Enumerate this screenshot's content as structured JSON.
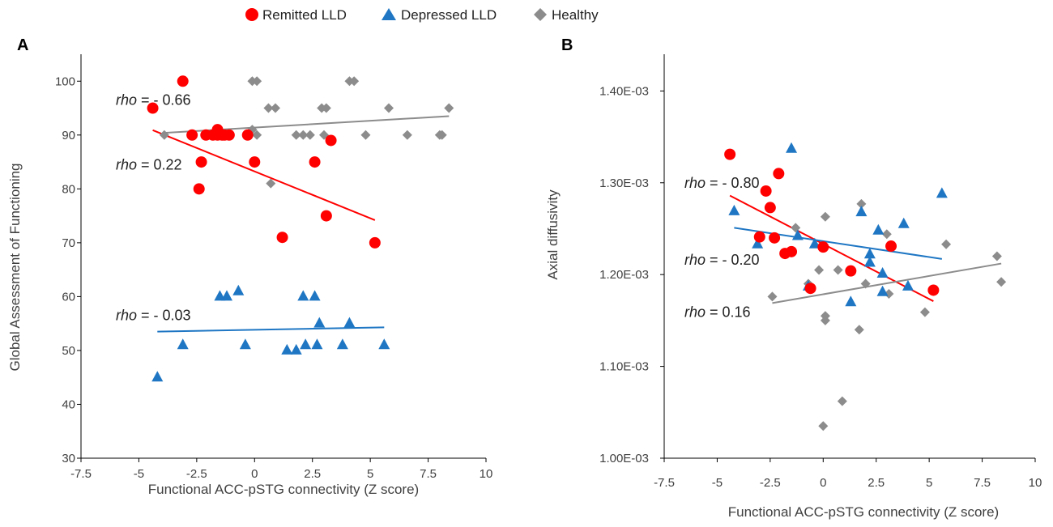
{
  "legend": [
    {
      "label": "Remitted LLD",
      "shape": "circle",
      "color": "#ff0000"
    },
    {
      "label": "Depressed LLD",
      "shape": "triangle",
      "color": "#1f77c4"
    },
    {
      "label": "Healthy",
      "shape": "diamond",
      "color": "#8c8c8c"
    }
  ],
  "colors": {
    "remitted": "#ff0000",
    "depressed": "#1f77c4",
    "healthy": "#8c8c8c",
    "axis": "#000000"
  },
  "chart_data": [
    {
      "type": "scatter",
      "panel": "A",
      "xlabel": "Functional ACC-pSTG connectivity (Z score)",
      "ylabel": "Global Assessment of Functioning",
      "xlim": [
        -7.5,
        10
      ],
      "ylim": [
        30,
        105
      ],
      "xticks": [
        -7.5,
        -5,
        -2.5,
        0,
        2.5,
        5,
        7.5,
        10
      ],
      "yticks": [
        30,
        40,
        50,
        60,
        70,
        80,
        90,
        100
      ],
      "xtick_labels": [
        "-7.5",
        "-5",
        "-2.5",
        "0",
        "2.5",
        "5",
        "7.5",
        "10"
      ],
      "ytick_labels": [
        "30",
        "40",
        "50",
        "60",
        "70",
        "80",
        "90",
        "100"
      ],
      "series": [
        {
          "name": "Remitted LLD",
          "shape": "circle",
          "color": "#ff0000",
          "x": [
            -4.4,
            -3.1,
            -2.7,
            -2.4,
            -2.3,
            -2.1,
            -1.8,
            -1.6,
            -1.6,
            -1.4,
            -1.3,
            -1.1,
            -0.3,
            0.0,
            2.6,
            3.1,
            3.3,
            1.2,
            5.2
          ],
          "y": [
            95,
            100,
            90,
            80,
            85,
            90,
            90,
            90,
            91,
            90,
            90,
            90,
            90,
            85,
            85,
            75,
            89,
            71,
            70
          ]
        },
        {
          "name": "Depressed LLD",
          "shape": "triangle",
          "color": "#1f77c4",
          "x": [
            -4.2,
            -3.1,
            -1.5,
            -1.2,
            -0.7,
            -0.4,
            1.4,
            1.8,
            2.1,
            2.2,
            2.6,
            2.7,
            2.8,
            3.8,
            4.1,
            5.6
          ],
          "y": [
            45,
            51,
            60,
            60,
            61,
            51,
            50,
            50,
            60,
            51,
            60,
            51,
            55,
            51,
            55,
            51
          ]
        },
        {
          "name": "Healthy",
          "shape": "diamond",
          "color": "#8c8c8c",
          "x": [
            -3.9,
            -1.2,
            -0.1,
            -0.1,
            0.1,
            0.1,
            0.6,
            0.7,
            0.9,
            1.8,
            2.1,
            2.4,
            2.9,
            3.0,
            3.1,
            4.1,
            4.3,
            4.8,
            5.8,
            6.6,
            8.0,
            8.1,
            8.4
          ],
          "y": [
            90,
            90,
            100,
            91,
            90,
            100,
            95,
            81,
            95,
            90,
            90,
            90,
            95,
            90,
            95,
            100,
            100,
            90,
            95,
            90,
            90,
            90,
            95
          ]
        }
      ],
      "trendlines": [
        {
          "name": "Remitted LLD",
          "color": "#ff0000",
          "x": [
            -4.4,
            5.2
          ],
          "y": [
            90.9,
            74.2
          ]
        },
        {
          "name": "Depressed LLD",
          "color": "#1f77c4",
          "x": [
            -4.2,
            5.6
          ],
          "y": [
            53.5,
            54.3
          ]
        },
        {
          "name": "Healthy",
          "color": "#8c8c8c",
          "x": [
            -3.9,
            8.4
          ],
          "y": [
            90.4,
            93.5
          ]
        }
      ],
      "annotations": [
        {
          "italic": "rho",
          "text": " = - 0.66",
          "x": -6.0,
          "y": 96.5
        },
        {
          "italic": "rho",
          "text": " = 0.22",
          "x": -6.0,
          "y": 84.5
        },
        {
          "italic": "rho",
          "text": " = - 0.03",
          "x": -6.0,
          "y": 56.5
        }
      ]
    },
    {
      "type": "scatter",
      "panel": "B",
      "xlabel": "Functional ACC-pSTG connectivity (Z score)",
      "ylabel": "Axial diffusivity",
      "xlim": [
        -7.5,
        10
      ],
      "ylim": [
        0.001,
        0.00144
      ],
      "xticks": [
        -7.5,
        -5,
        -2.5,
        0,
        2.5,
        5,
        7.5,
        10
      ],
      "yticks": [
        0.001,
        0.0011,
        0.0012,
        0.0013,
        0.0014
      ],
      "xtick_labels": [
        "-7.5",
        "-5",
        "-2.5",
        "0",
        "2.5",
        "5",
        "7.5",
        "10"
      ],
      "ytick_labels": [
        "1.00E-03",
        "1.10E-03",
        "1.20E-03",
        "1.30E-03",
        "1.40E-03"
      ],
      "series": [
        {
          "name": "Remitted LLD",
          "shape": "circle",
          "color": "#ff0000",
          "x": [
            -4.4,
            -3.0,
            -2.7,
            -2.5,
            -2.3,
            -2.1,
            -1.8,
            -1.5,
            -0.6,
            0.0,
            1.3,
            3.2,
            5.2
          ],
          "y": [
            0.001331,
            0.001241,
            0.001291,
            0.001273,
            0.00124,
            0.00131,
            0.001223,
            0.001225,
            0.001185,
            0.00123,
            0.001204,
            0.001231,
            0.001183
          ]
        },
        {
          "name": "Depressed LLD",
          "shape": "triangle",
          "color": "#1f77c4",
          "x": [
            -4.2,
            -3.1,
            -1.5,
            -1.2,
            -0.7,
            -0.4,
            1.3,
            1.8,
            2.2,
            2.2,
            2.6,
            2.8,
            2.8,
            3.8,
            4.0,
            5.6
          ],
          "y": [
            0.001269,
            0.001233,
            0.001337,
            0.001242,
            0.001187,
            0.001233,
            0.00117,
            0.001268,
            0.001222,
            0.001213,
            0.001248,
            0.001201,
            0.001181,
            0.001255,
            0.001187,
            0.001288
          ]
        },
        {
          "name": "Healthy",
          "shape": "diamond",
          "color": "#8c8c8c",
          "x": [
            -2.4,
            -1.3,
            -0.7,
            -0.2,
            0.1,
            0.1,
            0.1,
            0.0,
            0.7,
            0.9,
            1.7,
            1.8,
            2.0,
            3.0,
            3.1,
            4.8,
            5.8,
            8.2,
            8.4
          ],
          "y": [
            0.001176,
            0.001251,
            0.00119,
            0.001205,
            0.001263,
            0.001155,
            0.00115,
            0.001035,
            0.001205,
            0.001062,
            0.00114,
            0.001277,
            0.00119,
            0.001244,
            0.001179,
            0.001159,
            0.001233,
            0.00122,
            0.001192
          ]
        }
      ],
      "trendlines": [
        {
          "name": "Remitted LLD",
          "color": "#ff0000",
          "x": [
            -4.4,
            5.2
          ],
          "y": [
            0.001286,
            0.001171
          ]
        },
        {
          "name": "Depressed LLD",
          "color": "#1f77c4",
          "x": [
            -4.2,
            5.6
          ],
          "y": [
            0.001251,
            0.001217
          ]
        },
        {
          "name": "Healthy",
          "color": "#8c8c8c",
          "x": [
            -2.4,
            8.4
          ],
          "y": [
            0.001169,
            0.001212
          ]
        }
      ],
      "annotations": [
        {
          "italic": "rho",
          "text": " = - 0.80",
          "x": -6.0,
          "y": 0.0013
        },
        {
          "italic": "rho",
          "text": " = - 0.20",
          "x": -6.0,
          "y": 0.001216
        },
        {
          "italic": "rho",
          "text": " = 0.16",
          "x": -6.0,
          "y": 0.001159
        }
      ]
    }
  ]
}
